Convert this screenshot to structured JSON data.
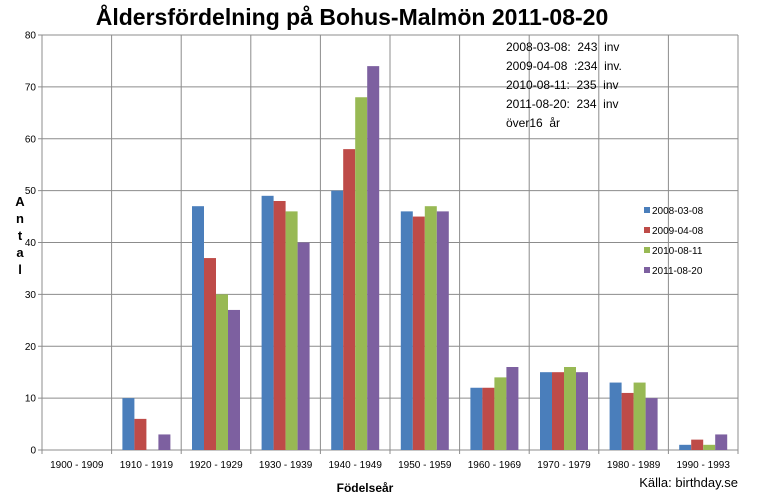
{
  "chart_data": {
    "type": "bar",
    "title": "Åldersfördelning på Bohus-Malmön 2011-08-20",
    "xlabel": "Födelseår",
    "ylabel": "Antal",
    "ylim": [
      0,
      80
    ],
    "yticks": [
      0,
      10,
      20,
      30,
      40,
      50,
      60,
      70,
      80
    ],
    "grid": true,
    "legend_position": "right",
    "categories": [
      "1900 - 1909",
      "1910 - 1919",
      "1920 - 1929",
      "1930 - 1939",
      "1940 - 1949",
      "1950 - 1959",
      "1960 - 1969",
      "1970 - 1979",
      "1980 - 1989",
      "1990 - 1993"
    ],
    "series": [
      {
        "name": "2008-03-08",
        "color": "#4a7ebb",
        "values": [
          0,
          10,
          47,
          49,
          50,
          46,
          12,
          15,
          13,
          1
        ]
      },
      {
        "name": "2009-04-08",
        "color": "#be4b48",
        "values": [
          0,
          6,
          37,
          48,
          58,
          45,
          12,
          15,
          11,
          2
        ]
      },
      {
        "name": "2010-08-11",
        "color": "#98b954",
        "values": [
          0,
          0,
          30,
          46,
          68,
          47,
          14,
          16,
          13,
          1
        ]
      },
      {
        "name": "2011-08-20",
        "color": "#7d60a0",
        "values": [
          0,
          3,
          27,
          40,
          74,
          46,
          16,
          15,
          10,
          3
        ]
      }
    ],
    "annotations": [
      "2008-03-08:  243  inv",
      "2009-04-08  :234  inv.",
      "2010-08-11:  235  inv",
      "2011-08-20:  234  inv",
      "över16  år"
    ],
    "source": "Källa: birthday.se"
  },
  "colors": {
    "grid": "#8c8c8c",
    "axis": "#8c8c8c"
  }
}
